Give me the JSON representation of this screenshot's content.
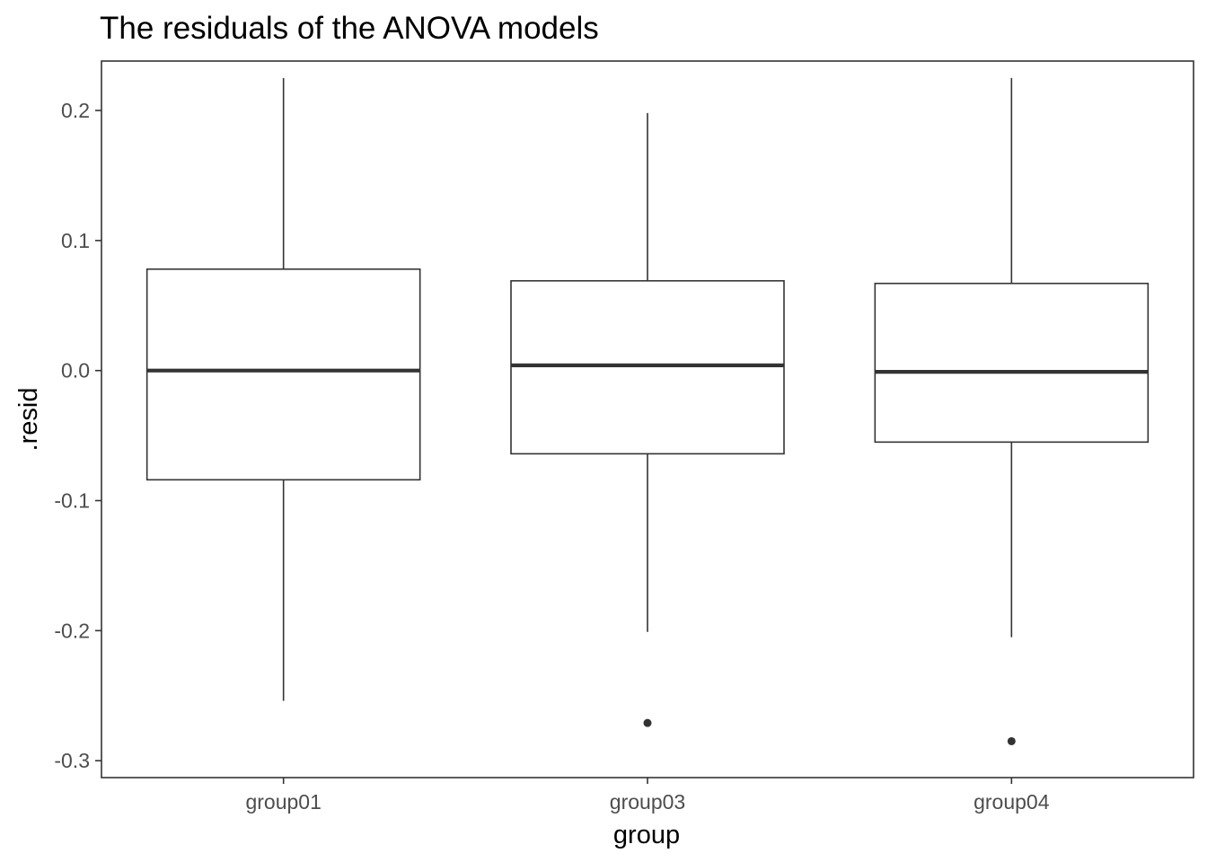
{
  "chart_data": {
    "type": "boxplot",
    "title": "The residuals of the ANOVA models",
    "xlabel": "group",
    "ylabel": ".resid",
    "categories": [
      "group01",
      "group03",
      "group04"
    ],
    "ylim": [
      -0.313,
      0.238
    ],
    "yticks": [
      0.2,
      0.1,
      0.0,
      -0.1,
      -0.2,
      -0.3
    ],
    "ytick_labels": [
      "0.2",
      "0.1",
      "0.0",
      "-0.1",
      "-0.2",
      "-0.3"
    ],
    "grid": false,
    "legend": "none",
    "boxes": [
      {
        "category": "group01",
        "whisker_low": -0.254,
        "q1": -0.084,
        "median": 0.0,
        "q3": 0.078,
        "whisker_high": 0.225,
        "outliers": []
      },
      {
        "category": "group03",
        "whisker_low": -0.201,
        "q1": -0.064,
        "median": 0.004,
        "q3": 0.069,
        "whisker_high": 0.198,
        "outliers": [
          -0.271
        ]
      },
      {
        "category": "group04",
        "whisker_low": -0.205,
        "q1": -0.055,
        "median": -0.001,
        "q3": 0.067,
        "whisker_high": 0.225,
        "outliers": [
          -0.285
        ]
      }
    ]
  }
}
